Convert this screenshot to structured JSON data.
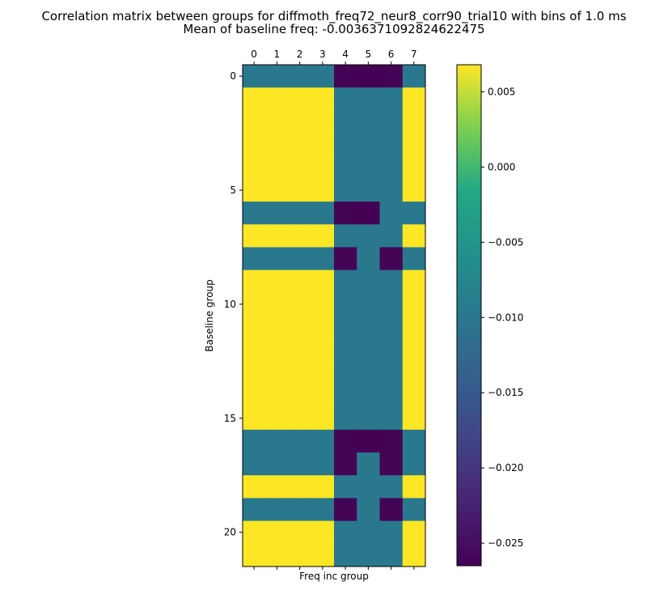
{
  "chart_data": {
    "type": "heatmap",
    "title": "Correlation matrix between groups for diffmoth_freq72_neur8_corr90_trial10 with bins of 1.0 ms",
    "subtitle": "Mean of baseline freq: -0.0036371092824622475",
    "xlabel": "Freq inc group",
    "ylabel": "Baseline group",
    "x_categories": [
      0,
      1,
      2,
      3,
      4,
      5,
      6,
      7
    ],
    "x_tick_labels": [
      "0",
      "1",
      "2",
      "3",
      "4",
      "5",
      "6",
      "7"
    ],
    "y_tick_labels": [
      "0",
      "5",
      "10",
      "15",
      "20"
    ],
    "y_tick_values": [
      0,
      5,
      10,
      15,
      20
    ],
    "n_rows": 22,
    "n_cols": 8,
    "colormap": "viridis",
    "vmin": -0.0265,
    "vmax": 0.0068,
    "colorbar_ticks": [
      -0.025,
      -0.02,
      -0.015,
      -0.01,
      -0.005,
      0.0,
      0.005
    ],
    "colorbar_tick_labels": [
      "−0.025",
      "−0.020",
      "−0.015",
      "−0.010",
      "−0.005",
      "0.000",
      "0.005"
    ],
    "values": [
      [
        -0.0099,
        -0.0099,
        -0.0099,
        -0.0099,
        -0.0262,
        -0.0265,
        -0.0262,
        -0.0099
      ],
      [
        0.0068,
        0.0068,
        0.0068,
        0.0068,
        -0.0099,
        -0.0099,
        -0.0099,
        0.0068
      ],
      [
        0.0068,
        0.0068,
        0.0068,
        0.0068,
        -0.0099,
        -0.0099,
        -0.0099,
        0.0068
      ],
      [
        0.0068,
        0.0068,
        0.0068,
        0.0068,
        -0.0099,
        -0.0099,
        -0.0099,
        0.0068
      ],
      [
        0.0068,
        0.0068,
        0.0068,
        0.0068,
        -0.0099,
        -0.0099,
        -0.0099,
        0.0068
      ],
      [
        0.0068,
        0.0068,
        0.0068,
        0.0068,
        -0.0099,
        -0.0099,
        -0.0099,
        0.0068
      ],
      [
        -0.0099,
        -0.0099,
        -0.0099,
        -0.0099,
        -0.0262,
        -0.0265,
        -0.0099,
        -0.0099
      ],
      [
        0.0068,
        0.0068,
        0.0068,
        0.0068,
        -0.0099,
        -0.0099,
        -0.0099,
        0.0068
      ],
      [
        -0.0099,
        -0.0099,
        -0.0099,
        -0.0099,
        -0.0262,
        -0.0099,
        -0.0262,
        -0.0099
      ],
      [
        0.0068,
        0.0068,
        0.0068,
        0.0068,
        -0.0099,
        -0.0099,
        -0.0099,
        0.0068
      ],
      [
        0.0068,
        0.0068,
        0.0068,
        0.0068,
        -0.0099,
        -0.0099,
        -0.0099,
        0.0068
      ],
      [
        0.0068,
        0.0068,
        0.0068,
        0.0068,
        -0.0099,
        -0.0099,
        -0.0099,
        0.0068
      ],
      [
        0.0068,
        0.0068,
        0.0068,
        0.0068,
        -0.0099,
        -0.0099,
        -0.0099,
        0.0068
      ],
      [
        0.0068,
        0.0068,
        0.0068,
        0.0068,
        -0.0099,
        -0.0099,
        -0.0099,
        0.0068
      ],
      [
        0.0068,
        0.0068,
        0.0068,
        0.0068,
        -0.0099,
        -0.0099,
        -0.0099,
        0.0068
      ],
      [
        0.0068,
        0.0068,
        0.0068,
        0.0068,
        -0.0099,
        -0.0099,
        -0.0099,
        0.0068
      ],
      [
        -0.0099,
        -0.0099,
        -0.0099,
        -0.0099,
        -0.0262,
        -0.0265,
        -0.0262,
        -0.0099
      ],
      [
        -0.0099,
        -0.0099,
        -0.0099,
        -0.0099,
        -0.0262,
        -0.0099,
        -0.0262,
        -0.0099
      ],
      [
        0.0068,
        0.0068,
        0.0068,
        0.0068,
        -0.0099,
        -0.0099,
        -0.0099,
        0.0068
      ],
      [
        -0.0099,
        -0.0099,
        -0.0099,
        -0.0099,
        -0.0262,
        -0.0099,
        -0.0262,
        -0.0099
      ],
      [
        0.0068,
        0.0068,
        0.0068,
        0.0068,
        -0.0099,
        -0.0099,
        -0.0099,
        0.0068
      ],
      [
        0.0068,
        0.0068,
        0.0068,
        0.0068,
        -0.0099,
        -0.0099,
        -0.0099,
        0.0068
      ]
    ]
  }
}
